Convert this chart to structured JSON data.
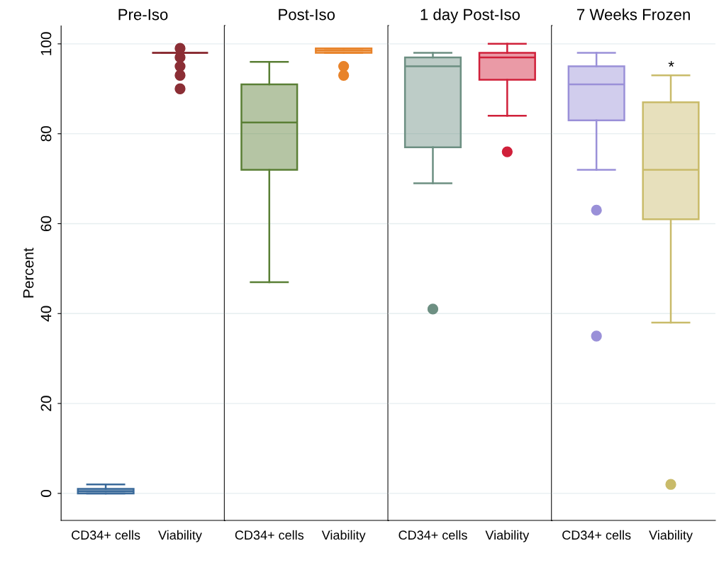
{
  "chart_data": [
    {
      "type": "box",
      "title": "Pre-Iso",
      "ylabel": "Percent",
      "categories": [
        "CD34+ cells",
        "Viability"
      ],
      "colors": [
        "#3a6a9a",
        "#8b2e35"
      ],
      "boxes": [
        {
          "low": 0,
          "q1": 0,
          "median": 0.5,
          "q3": 1,
          "high": 2
        },
        {
          "low": 98,
          "q1": 98,
          "median": 98,
          "q3": 98,
          "high": 98,
          "outliers": [
            99,
            97,
            95,
            93,
            90
          ]
        }
      ],
      "ylim": [
        -6,
        104
      ],
      "yticks": [
        0,
        20,
        40,
        60,
        80,
        100
      ],
      "grid": "y"
    },
    {
      "type": "box",
      "title": "Post-Iso",
      "categories": [
        "CD34+ cells",
        "Viability"
      ],
      "colors": [
        "#5a7f35",
        "#e8832a"
      ],
      "boxes": [
        {
          "low": 47,
          "q1": 72,
          "median": 82.5,
          "q3": 91,
          "high": 96
        },
        {
          "low": 98,
          "q1": 98,
          "median": 98.5,
          "q3": 99,
          "high": 99,
          "outliers": [
            95,
            93
          ]
        }
      ],
      "ylim": [
        -6,
        104
      ],
      "yticks": [
        0,
        20,
        40,
        60,
        80,
        100
      ],
      "grid": "y",
      "tick_labels": "x"
    },
    {
      "type": "box",
      "title": "1 day Post-Iso",
      "categories": [
        "CD34+ cells",
        "Viability"
      ],
      "colors": [
        "#6d8f82",
        "#d0203a"
      ],
      "boxes": [
        {
          "low": 69,
          "q1": 77,
          "median": 95,
          "q3": 97,
          "high": 98,
          "outliers": [
            41
          ]
        },
        {
          "low": 84,
          "q1": 92,
          "median": 97,
          "q3": 98,
          "high": 100,
          "outliers": [
            76
          ]
        }
      ],
      "ylim": [
        -6,
        104
      ],
      "yticks": [
        0,
        20,
        40,
        60,
        80,
        100
      ],
      "grid": "y",
      "tick_labels": "x"
    },
    {
      "type": "box",
      "title": "7 Weeks Frozen",
      "categories": [
        "CD34+ cells",
        "Viability"
      ],
      "colors": [
        "#9a90d8",
        "#c9bb6a"
      ],
      "boxes": [
        {
          "low": 72,
          "q1": 83,
          "median": 91,
          "q3": 95,
          "high": 98,
          "outliers": [
            63,
            35
          ]
        },
        {
          "low": 38,
          "q1": 61,
          "median": 72,
          "q3": 87,
          "high": 93,
          "outliers": [
            2
          ]
        }
      ],
      "annotations": [
        "*"
      ],
      "ylim": [
        -6,
        104
      ],
      "yticks": [
        0,
        20,
        40,
        60,
        80,
        100
      ],
      "grid": "y",
      "tick_labels": "x"
    }
  ]
}
